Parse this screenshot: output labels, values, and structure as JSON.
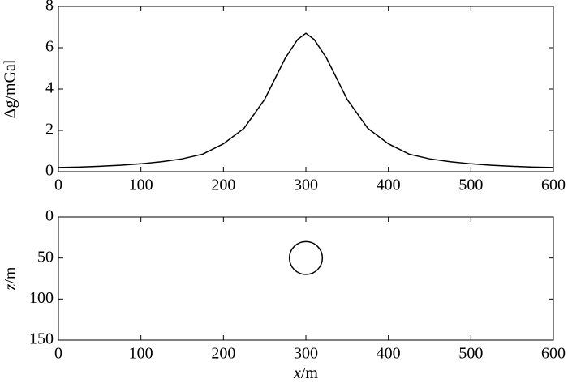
{
  "chart_data": [
    {
      "type": "line",
      "ylabel": "Δg/mGal",
      "x": [
        0,
        25,
        50,
        75,
        100,
        125,
        150,
        175,
        200,
        225,
        250,
        275,
        290,
        300,
        310,
        325,
        350,
        375,
        400,
        425,
        450,
        475,
        500,
        525,
        550,
        575,
        600
      ],
      "series": [
        {
          "color": "#000000",
          "values": [
            0.2,
            0.22,
            0.26,
            0.31,
            0.38,
            0.48,
            0.62,
            0.85,
            1.35,
            2.1,
            3.5,
            5.5,
            6.4,
            6.7,
            6.4,
            5.5,
            3.5,
            2.1,
            1.35,
            0.85,
            0.62,
            0.48,
            0.38,
            0.31,
            0.26,
            0.22,
            0.2
          ]
        }
      ],
      "xlim": [
        0,
        600
      ],
      "xticks": [
        0,
        100,
        200,
        300,
        400,
        500,
        600
      ],
      "ylim": [
        0,
        8
      ],
      "yticks": [
        0,
        2,
        4,
        6,
        8
      ]
    },
    {
      "type": "circle",
      "xlabel": "x/m",
      "ylabel": "z/m",
      "circle": {
        "x": 300,
        "z": 50,
        "r": 20,
        "color": "#000000"
      },
      "xlim": [
        0,
        600
      ],
      "xticks": [
        0,
        100,
        200,
        300,
        400,
        500,
        600
      ],
      "ylim": [
        150,
        0
      ],
      "yticks": [
        0,
        50,
        100,
        150
      ]
    }
  ]
}
